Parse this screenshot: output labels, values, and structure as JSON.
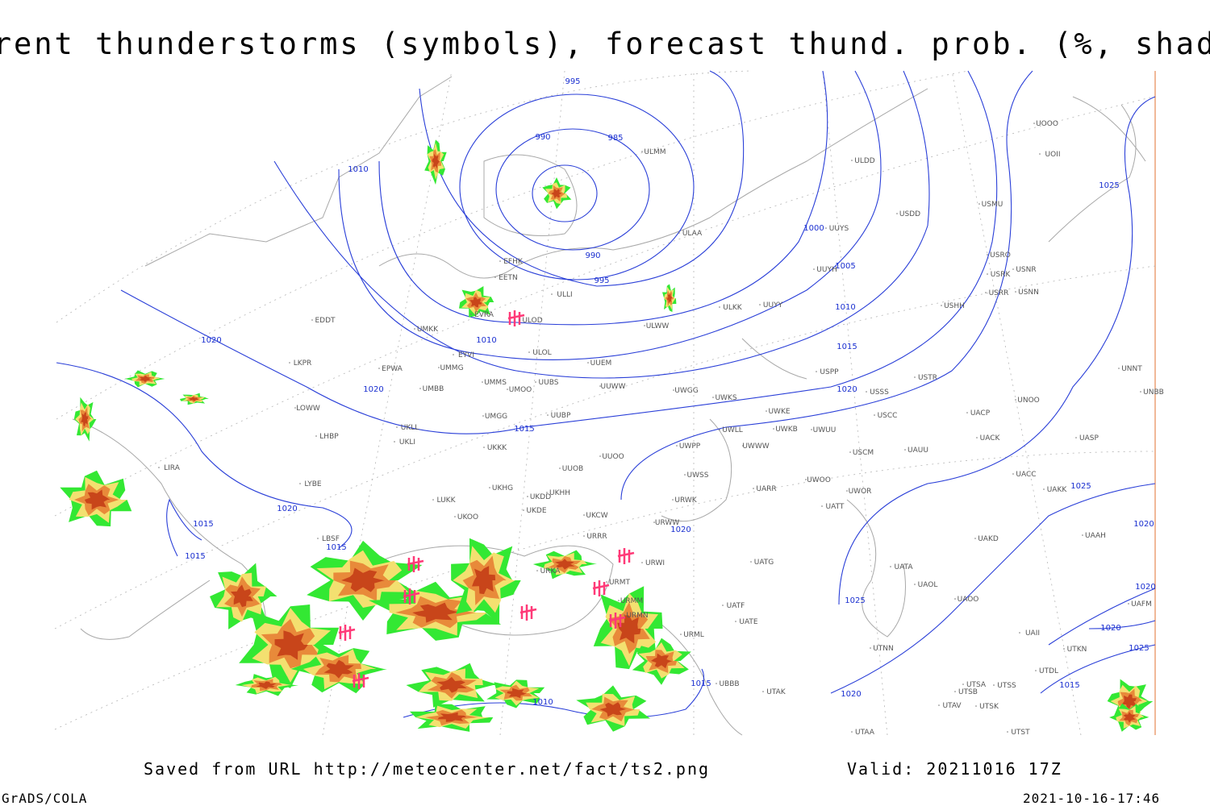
{
  "header": {
    "title": "Current thunderstorms (symbols), forecast thund. prob. (%, shaded)"
  },
  "isobar_labels": [
    995,
    990,
    985,
    990,
    995,
    1010,
    1000,
    1005,
    1010,
    1015,
    1020,
    1010,
    1020,
    1020,
    1015,
    1020,
    1015,
    1015,
    1015,
    1020,
    1025,
    1025,
    1025,
    1020,
    1015,
    1010,
    1020,
    1020,
    1020,
    1025,
    1015
  ],
  "stations": [
    "ULDD",
    "UUYS",
    "ULAA",
    "ULMM",
    "EFHK",
    "EETN",
    "ULLI",
    "ULOD",
    "ULWW",
    "ULKK",
    "UUYY",
    "UUYH",
    "USMU",
    "USDD",
    "USRO",
    "USRK",
    "USNR",
    "USRR",
    "USNN",
    "USHH",
    "EVRA",
    "UMKK",
    "EYVI",
    "ULOL",
    "UUEM",
    "UMMG",
    "EPWA",
    "LKPR",
    "UMMS",
    "UMOO",
    "UUBS",
    "UUWW",
    "UWGG",
    "UWKS",
    "USPP",
    "USTR",
    "USSS",
    "UNOO",
    "UNNT",
    "UNBB",
    "EDDT",
    "UMBB",
    "LOWW",
    "UKLL",
    "UMGG",
    "UUBP",
    "UWKE",
    "UWKB",
    "UWUU",
    "USCC",
    "UACP",
    "UACK",
    "UASP",
    "LHBP",
    "UKLI",
    "UKKK",
    "UUOO",
    "UWPP",
    "UWWW",
    "UWLL",
    "USCM",
    "UAUU",
    "UUOB",
    "LIRA",
    "UWSS",
    "UWOO",
    "UACC",
    "UAKK",
    "LYBE",
    "UKHG",
    "UKDD",
    "UKHH",
    "UARR",
    "UWOR",
    "UATT",
    "LUKK",
    "UKOO",
    "UKDE",
    "UKCW",
    "URWK",
    "URWW",
    "URRR",
    "UAKD",
    "UAAH",
    "LBSF",
    "URWI",
    "UATG",
    "UATA",
    "URKA",
    "UAOL",
    "UAOO",
    "URMT",
    "URMM",
    "URMN",
    "UATE",
    "UATF",
    "URML",
    "UBBB",
    "UTAK",
    "UTNN",
    "UTSA",
    "UTSB",
    "UTSS",
    "UTAV",
    "UTSK",
    "UTAA",
    "UTST",
    "UTDL",
    "UTKN",
    "UAFM",
    "UAII",
    "UOOO",
    "UOII"
  ],
  "footer": {
    "source": "Saved from URL http://meteocenter.net/fact/ts2.png",
    "valid": "Valid: 20211016 17Z",
    "software": "GrADS/COLA",
    "timestamp": "2021-10-16-17:46"
  }
}
